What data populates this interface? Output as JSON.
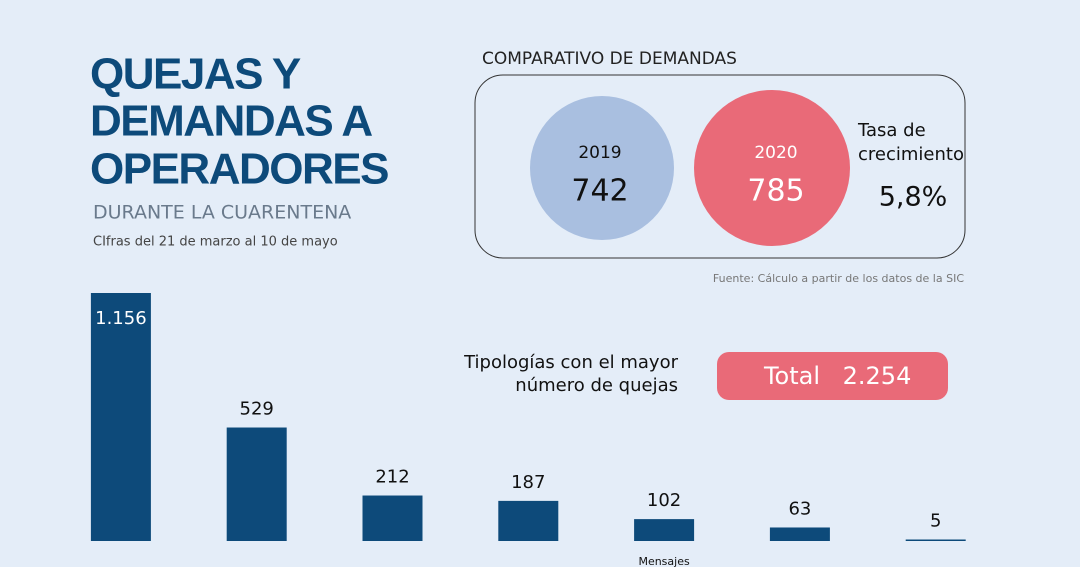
{
  "header": {
    "title_lines": [
      "QUEJAS Y",
      "DEMANDAS A",
      "OPERADORES"
    ],
    "subtitle": "DURANTE LA CUARENTENA",
    "period": "CIfras del 21 de marzo al 10 de mayo"
  },
  "comparison": {
    "title": "COMPARATIVO DE DEMANDAS",
    "items": [
      {
        "year": "2019",
        "value": "742"
      },
      {
        "year": "2020",
        "value": "785"
      }
    ],
    "growth_label_lines": [
      "Tasa de",
      "crecimiento"
    ],
    "growth_value": "5,8%",
    "source": "Fuente: Cálculo a partir de los datos de la SIC"
  },
  "summary": {
    "label_lines": [
      "Tipologías con el mayor",
      "número de quejas"
    ],
    "total_label": "Total",
    "total_value": "2.254"
  },
  "chart_data": {
    "type": "bar",
    "categories": [
      null,
      null,
      null,
      null,
      "Mensajes",
      null,
      null
    ],
    "values": [
      1156,
      529,
      212,
      187,
      102,
      63,
      5
    ],
    "value_labels": [
      "1.156",
      "529",
      "212",
      "187",
      "102",
      "63",
      "5"
    ],
    "color": "#0d4a7a"
  }
}
